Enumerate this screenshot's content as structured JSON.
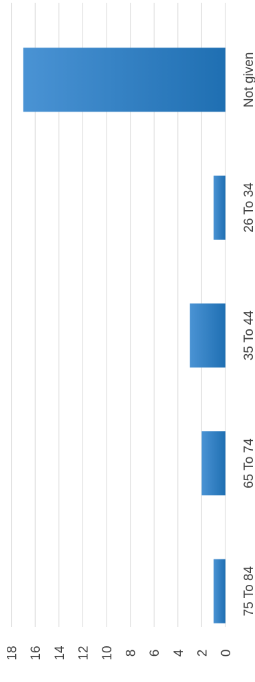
{
  "chart_data": {
    "type": "bar",
    "orientation": "rotated-90-ccw",
    "categories": [
      "Not given",
      "26 To 34",
      "35 To 44",
      "65 To 74",
      "75 To 84"
    ],
    "values": [
      17,
      1,
      3,
      2,
      1
    ],
    "title": "",
    "xlabel": "",
    "ylabel": "",
    "ylim": [
      0,
      18
    ],
    "ticks": [
      "0",
      "2",
      "4",
      "6",
      "8",
      "10",
      "12",
      "14",
      "16",
      "18"
    ],
    "grid": true,
    "legend": "none",
    "colors": {
      "bar_light": "#4a93d4",
      "bar_dark": "#1f6fb2",
      "grid": "#d9d9d9",
      "text": "#404040"
    }
  }
}
